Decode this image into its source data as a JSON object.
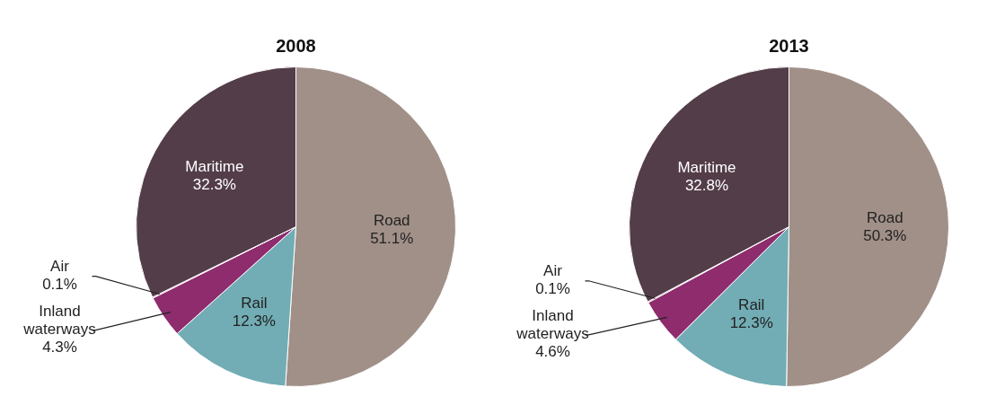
{
  "chart_data": [
    {
      "type": "pie",
      "title": "2008",
      "categories": [
        "Road",
        "Rail",
        "Inland waterways",
        "Air",
        "Maritime"
      ],
      "values": [
        51.1,
        12.3,
        4.3,
        0.1,
        32.3
      ],
      "colors": [
        "#a09088",
        "#72adb5",
        "#8e2c6e",
        "#8e2c6e",
        "#533d48"
      ],
      "value_labels": [
        "51.1%",
        "12.3%",
        "4.3%",
        "0.1%",
        "32.3%"
      ],
      "legend": false
    },
    {
      "type": "pie",
      "title": "2013",
      "categories": [
        "Road",
        "Rail",
        "Inland waterways",
        "Air",
        "Maritime"
      ],
      "values": [
        50.3,
        12.3,
        4.6,
        0.1,
        32.8
      ],
      "colors": [
        "#a09088",
        "#72adb5",
        "#8e2c6e",
        "#8e2c6e",
        "#533d48"
      ],
      "value_labels": [
        "50.3%",
        "12.3%",
        "4.6%",
        "0.1%",
        "32.8%"
      ],
      "legend": false
    }
  ]
}
